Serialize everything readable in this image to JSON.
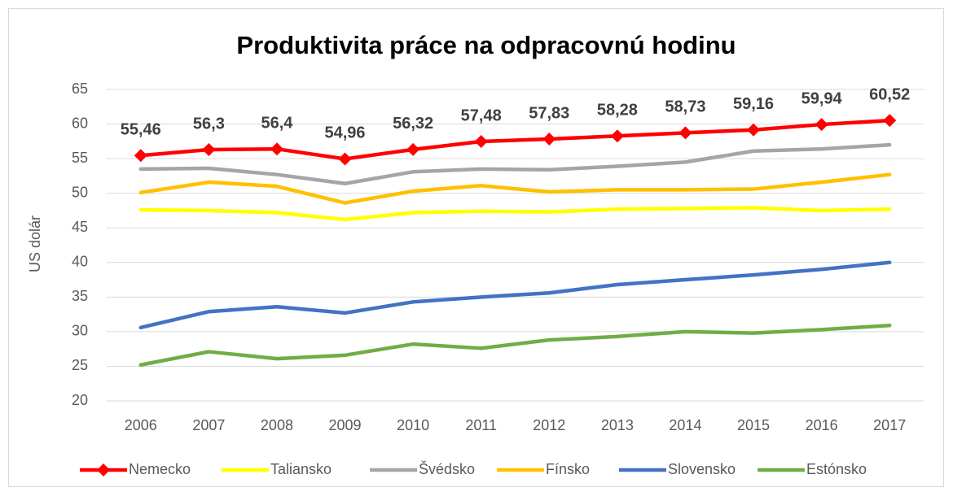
{
  "chart_data": {
    "type": "line",
    "title": "Produktivita práce na odpracovnú hodinu",
    "y_label": "US dolár",
    "categories": [
      "2006",
      "2007",
      "2008",
      "2009",
      "2010",
      "2011",
      "2012",
      "2013",
      "2014",
      "2015",
      "2016",
      "2017"
    ],
    "series": [
      {
        "name": "Nemecko",
        "color": "#ff0000",
        "marker": "diamond",
        "values": [
          55.46,
          56.3,
          56.4,
          54.96,
          56.32,
          57.48,
          57.83,
          58.28,
          58.73,
          59.16,
          59.94,
          60.52
        ],
        "value_labels": [
          "55,46",
          "56,3",
          "56,4",
          "54,96",
          "56,32",
          "57,48",
          "57,83",
          "58,28",
          "58,73",
          "59,16",
          "59,94",
          "60,52"
        ]
      },
      {
        "name": "Taliansko",
        "color": "#ffff00",
        "values": [
          47.6,
          47.5,
          47.2,
          46.2,
          47.2,
          47.4,
          47.3,
          47.7,
          47.8,
          47.9,
          47.5,
          47.7
        ]
      },
      {
        "name": "Švédsko",
        "color": "#a5a5a5",
        "values": [
          53.5,
          53.6,
          52.7,
          51.4,
          53.1,
          53.5,
          53.4,
          53.9,
          54.5,
          56.1,
          56.4,
          57.0
        ]
      },
      {
        "name": "Fínsko",
        "color": "#ffc000",
        "values": [
          50.1,
          51.6,
          51.0,
          48.6,
          50.3,
          51.1,
          50.2,
          50.5,
          50.5,
          50.6,
          51.6,
          52.7
        ]
      },
      {
        "name": "Slovensko",
        "color": "#4472c4",
        "values": [
          30.6,
          32.9,
          33.6,
          32.7,
          34.3,
          35.0,
          35.6,
          36.8,
          37.5,
          38.2,
          39.0,
          40.0
        ]
      },
      {
        "name": "Estónsko",
        "color": "#70ad47",
        "values": [
          25.2,
          27.1,
          26.1,
          26.6,
          28.2,
          27.6,
          28.8,
          29.3,
          30.0,
          29.8,
          30.3,
          30.9
        ]
      }
    ],
    "ylim": [
      20,
      65
    ],
    "yticks": [
      20,
      25,
      30,
      35,
      40,
      45,
      50,
      55,
      60,
      65
    ],
    "grid": true,
    "legend": "bottom"
  }
}
